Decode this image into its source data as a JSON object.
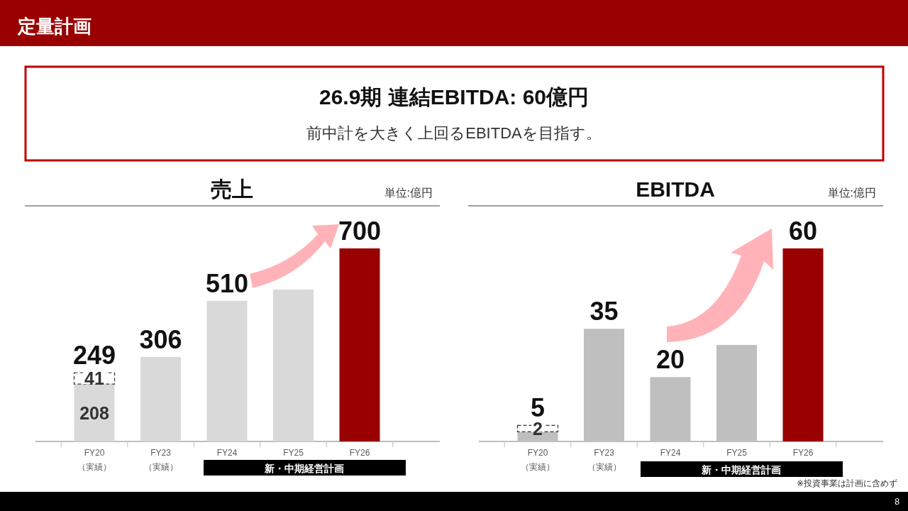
{
  "chart_data": [
    {
      "type": "bar",
      "title": "売上",
      "subtitle": "単位:億円",
      "stacked": true,
      "categories": [
        "FY20\n（実績）",
        "FY23\n（実績）",
        "FY24",
        "FY25",
        "FY26"
      ],
      "series": [
        {
          "colors": [
            "#d9d9d9",
            "#d9d9d9",
            "#d9d9d9",
            "#d9d9d9",
            "#990000"
          ],
          "values": [
            208,
            306,
            510,
            551,
            700
          ],
          "value_labels": [
            "208",
            null,
            null,
            null,
            null
          ]
        },
        {
          "color": "#ffffff",
          "line_style": "dashed",
          "values": [
            41,
            null,
            null,
            null,
            null
          ],
          "value_labels": [
            "41",
            null,
            null,
            null,
            null
          ]
        }
      ],
      "totals": [
        "249",
        "306",
        "510",
        null,
        "700"
      ],
      "annotations": [
        "定量計画",
        "26.9期 連結EBITDA:  60億円",
        "前中計を大きく上回るEBITDAを目指す。",
        "新・中期経営計画"
      ]
    },
    {
      "type": "bar",
      "title": "EBITDA",
      "subtitle": "単位:億円",
      "stacked": true,
      "categories": [
        "FY20\n（実績）",
        "FY23\n（実績）",
        "FY24",
        "FY25",
        "FY26"
      ],
      "series": [
        {
          "colors": [
            "#bfbfbf",
            "#bfbfbf",
            "#bfbfbf",
            "#bfbfbf",
            "#990000"
          ],
          "values": [
            3,
            35,
            20,
            30,
            60
          ],
          "value_labels": [
            null,
            null,
            null,
            null,
            null
          ]
        },
        {
          "color": "#ffffff",
          "line_style": "dashed",
          "values": [
            2,
            null,
            null,
            null,
            null
          ],
          "value_labels": [
            "2",
            null,
            null,
            null,
            null
          ]
        }
      ],
      "totals": [
        "5",
        "35",
        "20",
        null,
        "60"
      ],
      "annotations": [
        "※投資事業は計画に含めず",
        "8",
        "新・中期経営計画"
      ]
    }
  ]
}
